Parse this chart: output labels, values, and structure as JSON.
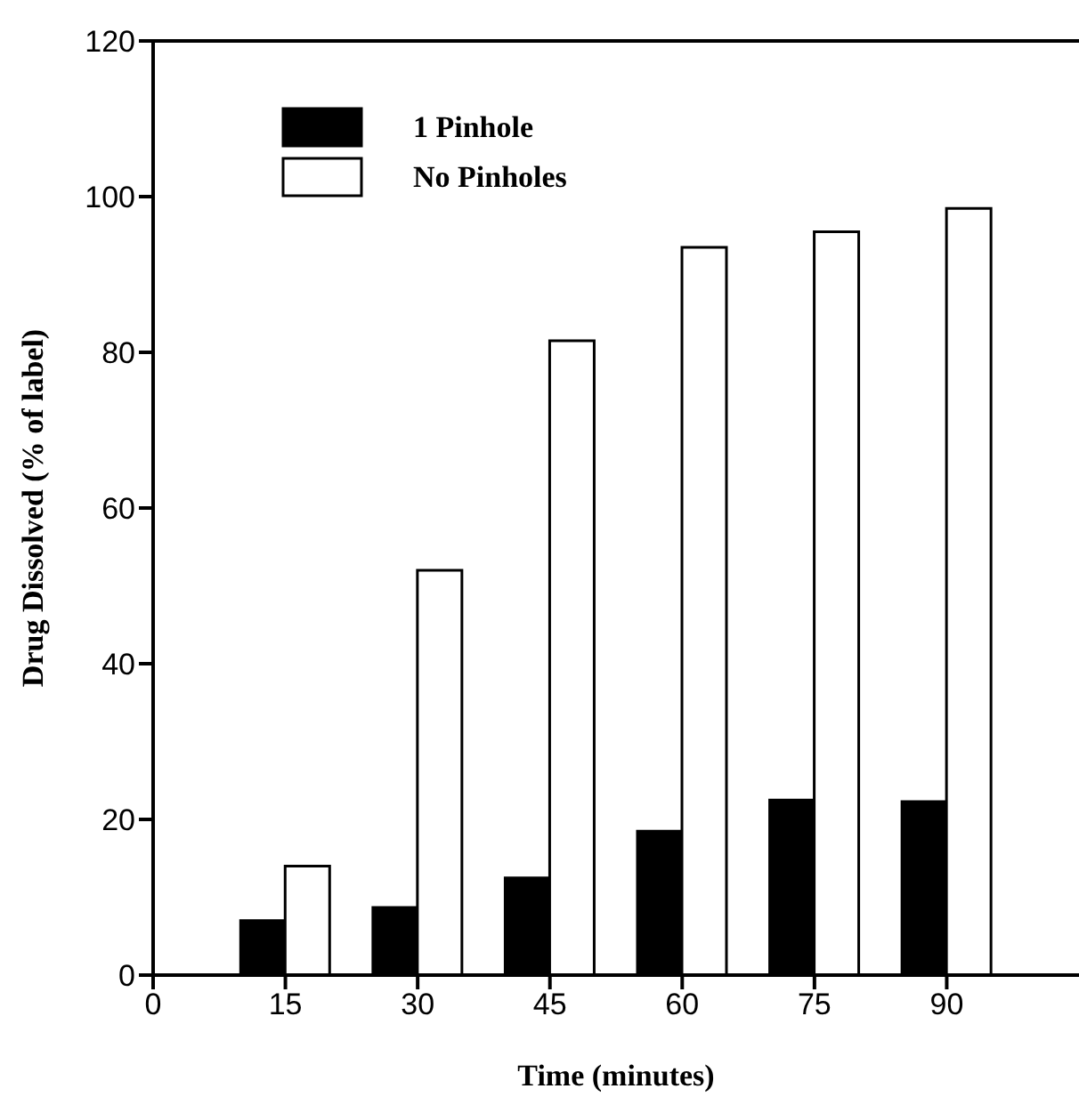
{
  "chart_data": {
    "type": "bar",
    "xlabel": "Time (minutes)",
    "ylabel": "Drug Dissolved (% of label)",
    "x": [
      15,
      30,
      45,
      60,
      75,
      90
    ],
    "series": [
      {
        "name": "1 Pinhole",
        "color": "#000000",
        "values": [
          7,
          8.7,
          12.5,
          18.5,
          22.5,
          22.3
        ]
      },
      {
        "name": "No Pinholes",
        "color": "#ffffff",
        "values": [
          14,
          52,
          81.5,
          93.5,
          95.5,
          98.5
        ]
      }
    ],
    "xlim": [
      0,
      105
    ],
    "xticks": [
      0,
      15,
      30,
      45,
      60,
      75,
      90
    ],
    "ylim": [
      0,
      120
    ],
    "yticks": [
      0,
      20,
      40,
      60,
      80,
      100,
      120
    ],
    "grid": false,
    "legend": "top left"
  }
}
